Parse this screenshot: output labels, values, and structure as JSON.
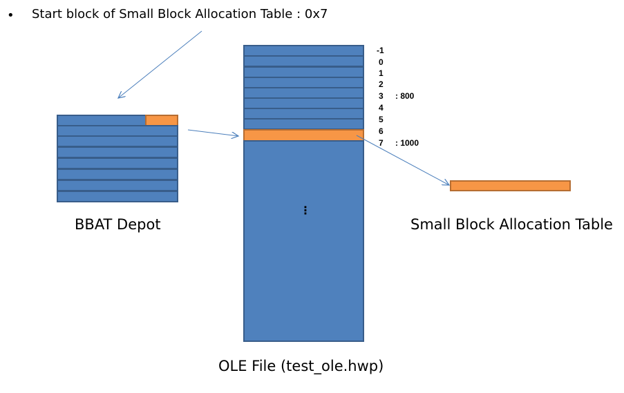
{
  "bullet": "•",
  "heading": "Start block of Small Block Allocation Table : 0x7",
  "bbat_depot": {
    "label": "BBAT Depot"
  },
  "ole_file": {
    "label": "OLE File (test_ole.hwp)",
    "blocks": [
      {
        "index": "-1",
        "note": ""
      },
      {
        "index": "0",
        "note": ""
      },
      {
        "index": "1",
        "note": ""
      },
      {
        "index": "2",
        "note": ""
      },
      {
        "index": "3",
        "note": ": 800"
      },
      {
        "index": "4",
        "note": ""
      },
      {
        "index": "5",
        "note": ""
      },
      {
        "index": "6",
        "note": ""
      },
      {
        "index": "7",
        "note": ": 1000"
      }
    ],
    "ellipsis": "⋮"
  },
  "sbat": {
    "label": "Small Block Allocation Table"
  },
  "colors": {
    "block_fill": "#4f81bd",
    "block_border": "#385d8a",
    "highlight_fill": "#f79646",
    "highlight_border": "#b66d31",
    "arrow": "#4a7ebb"
  }
}
